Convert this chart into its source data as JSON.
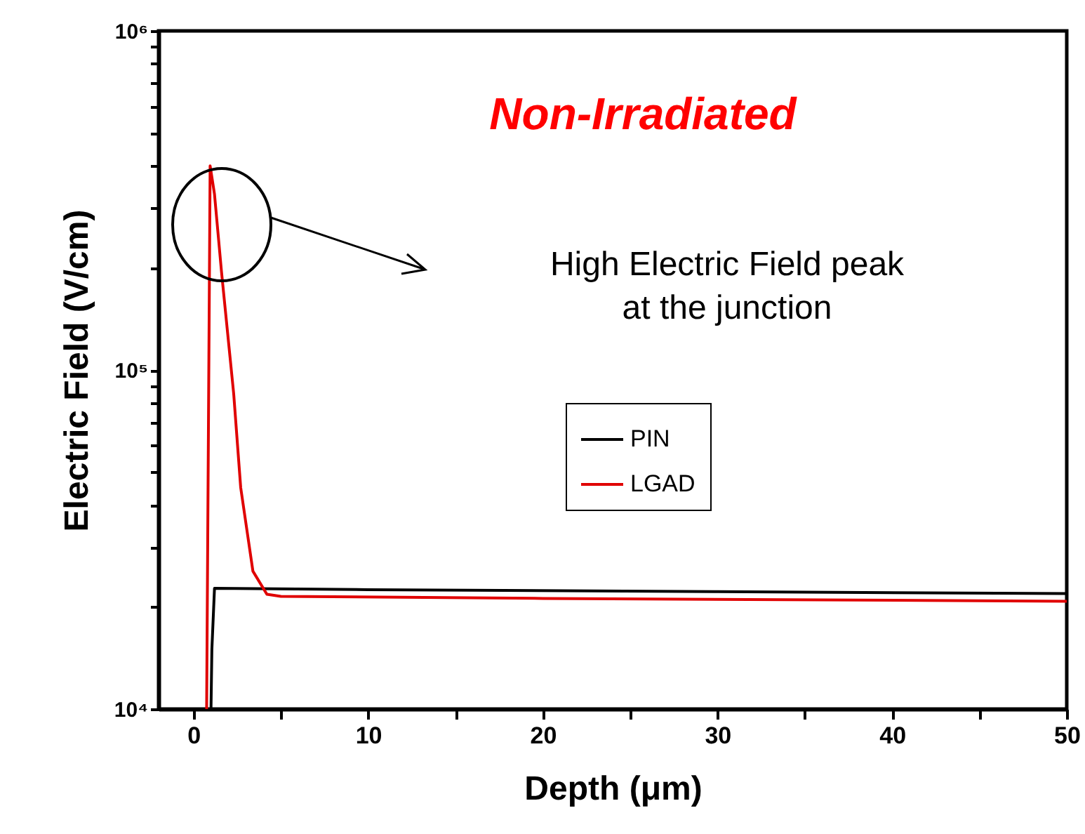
{
  "chart_data": {
    "type": "line",
    "xlabel": "Depth (μm)",
    "ylabel": "Electric Field (V/cm)",
    "annotations": [
      "Non-Irradiated",
      {
        "text": "High Electric Field peak\nat the junction"
      }
    ],
    "log": "y",
    "xlim": [
      -2,
      50
    ],
    "ylim": [
      10000,
      1000000
    ],
    "xticks": [
      0,
      {
        "value": 5,
        "label": null
      },
      10,
      {
        "value": 15,
        "label": null
      },
      20,
      {
        "value": 25,
        "label": null
      },
      30,
      {
        "value": 35,
        "label": null
      },
      40,
      {
        "value": 45,
        "label": null
      },
      50
    ],
    "yticks": [
      {
        "value": 10000,
        "label": "10⁴"
      },
      {
        "value": 20000,
        "label": null
      },
      {
        "value": 30000,
        "label": null
      },
      {
        "value": 40000,
        "label": null
      },
      {
        "value": 50000,
        "label": null
      },
      {
        "value": 60000,
        "label": null
      },
      {
        "value": 70000,
        "label": null
      },
      {
        "value": 80000,
        "label": null
      },
      {
        "value": 90000,
        "label": null
      },
      {
        "value": 100000,
        "label": "10⁵"
      },
      {
        "value": 200000,
        "label": null
      },
      {
        "value": 300000,
        "label": null
      },
      {
        "value": 400000,
        "label": null
      },
      {
        "value": 500000,
        "label": null
      },
      {
        "value": 600000,
        "label": null
      },
      {
        "value": 700000,
        "label": null
      },
      {
        "value": 800000,
        "label": null
      },
      {
        "value": 900000,
        "label": null
      },
      {
        "value": 1000000,
        "label": "10⁶"
      }
    ],
    "grid": false,
    "legend": "center",
    "line_style": "solid",
    "series": [
      {
        "name": "PIN",
        "color": "#000000",
        "x": [
          1.0,
          1.05,
          1.2,
          10,
          30,
          50
        ],
        "values": [
          10000,
          15000,
          22700,
          22500,
          22200,
          21900
        ]
      },
      {
        "name": "LGAD",
        "color": "#e00000",
        "x": [
          0.75,
          0.95,
          1.2,
          1.6,
          2.3,
          2.7,
          3.4,
          4.2,
          5,
          20,
          50
        ],
        "values": [
          10000,
          400000,
          330000,
          195000,
          85000,
          45000,
          25500,
          21800,
          21500,
          21200,
          20800
        ]
      }
    ]
  }
}
